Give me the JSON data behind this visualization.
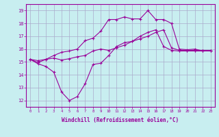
{
  "line1_x": [
    0,
    1,
    2,
    3,
    4,
    5,
    6,
    7,
    8,
    9,
    10,
    11,
    12,
    13,
    14,
    15,
    16,
    17,
    18,
    19,
    20,
    21,
    22,
    23
  ],
  "line1_y": [
    15.2,
    14.85,
    14.65,
    14.2,
    12.65,
    12.0,
    12.3,
    13.3,
    14.8,
    14.9,
    15.5,
    16.2,
    16.5,
    16.6,
    17.0,
    17.3,
    17.5,
    16.2,
    15.9,
    15.85,
    15.85,
    15.85,
    15.85,
    15.85
  ],
  "line2_x": [
    0,
    1,
    2,
    3,
    4,
    5,
    6,
    7,
    8,
    9,
    10,
    11,
    12,
    13,
    14,
    15,
    16,
    17,
    18,
    19,
    20,
    21,
    22,
    23
  ],
  "line2_y": [
    15.2,
    14.95,
    15.2,
    15.3,
    15.15,
    15.25,
    15.4,
    15.5,
    15.85,
    16.0,
    15.9,
    16.1,
    16.3,
    16.6,
    16.8,
    17.0,
    17.3,
    17.5,
    16.1,
    15.9,
    15.9,
    15.9,
    15.9,
    15.9
  ],
  "line3_x": [
    0,
    1,
    2,
    3,
    4,
    5,
    6,
    7,
    8,
    9,
    10,
    11,
    12,
    13,
    14,
    15,
    16,
    17,
    18,
    19,
    20,
    21,
    22,
    23
  ],
  "line3_y": [
    15.2,
    15.1,
    15.2,
    15.5,
    15.75,
    15.85,
    16.0,
    16.65,
    16.85,
    17.4,
    18.3,
    18.3,
    18.5,
    18.35,
    18.35,
    19.0,
    18.3,
    18.3,
    18.0,
    16.0,
    15.95,
    16.0,
    15.85,
    15.85
  ],
  "color": "#990099",
  "bg_color": "#c8eef0",
  "grid_color": "#aaaacc",
  "xlabel": "Windchill (Refroidissement éolien,°C)",
  "ylim": [
    11.5,
    19.5
  ],
  "xlim": [
    -0.5,
    23.5
  ],
  "yticks": [
    12,
    13,
    14,
    15,
    16,
    17,
    18,
    19
  ],
  "xticks": [
    0,
    1,
    2,
    3,
    4,
    5,
    6,
    7,
    8,
    9,
    10,
    11,
    12,
    13,
    14,
    15,
    16,
    17,
    18,
    19,
    20,
    21,
    22,
    23
  ]
}
